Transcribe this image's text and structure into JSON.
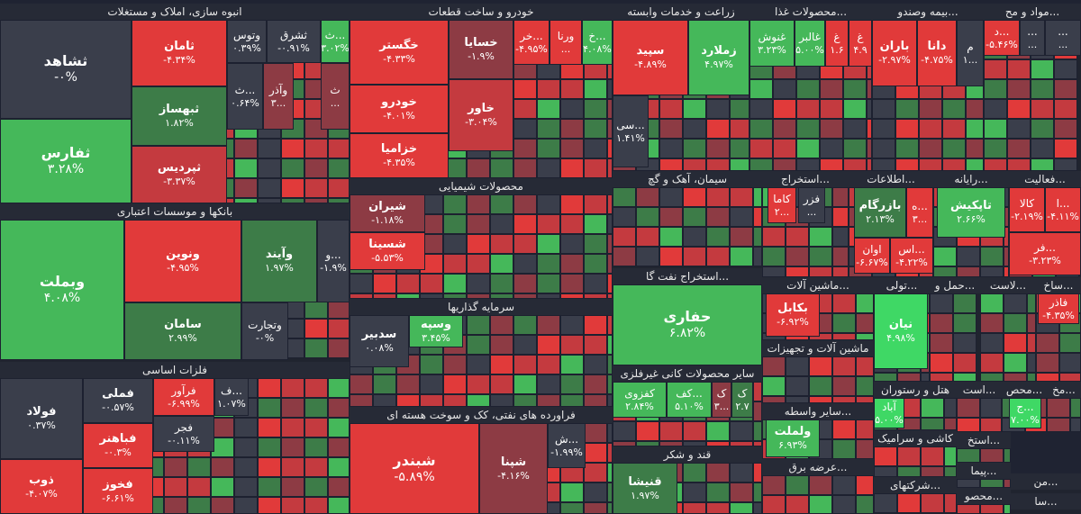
{
  "colors": {
    "strong_red": "#e13a3a",
    "red": "#c43a3f",
    "dark_red": "#8d3b44",
    "neutral": "#3a3e4b",
    "dark_green": "#3d7c48",
    "green": "#45b85a",
    "bright_green": "#3fd865"
  },
  "chart_data": {
    "type": "treemap",
    "title": "",
    "sectors": [
      {
        "name": "انبوه سازی، املاک و مستغلات",
        "stocks": [
          {
            "name": "ثشاهد",
            "change": "-۰%"
          },
          {
            "name": "ثفارس",
            "change": "۳.۲۸%"
          },
          {
            "name": "ثامان",
            "change": "-۴.۳۴%"
          },
          {
            "name": "ثبهساز",
            "change": "۱.۸۲%"
          },
          {
            "name": "ثپردیس",
            "change": "-۳.۳۷%"
          },
          {
            "name": "وتوس",
            "change": "۰.۳۹%"
          },
          {
            "name": "ثشرق",
            "change": "-۰.۹۱%"
          },
          {
            "name": "ث...",
            "change": "۳.۰۲%"
          },
          {
            "name": "ث...",
            "change": "۰.۶۴%"
          },
          {
            "name": "وآذر",
            "change": "۳..."
          },
          {
            "name": "ث",
            "change": "..."
          }
        ]
      },
      {
        "name": "خودرو و ساخت قطعات",
        "stocks": [
          {
            "name": "خگستر",
            "change": "-۴.۳۳%"
          },
          {
            "name": "خودرو",
            "change": "-۴.۰۱%"
          },
          {
            "name": "خزامیا",
            "change": "-۴.۳۵%"
          },
          {
            "name": "خسایا",
            "change": "-۱.۹%"
          },
          {
            "name": "خاور",
            "change": "-۳.۰۴%"
          },
          {
            "name": "خر...",
            "change": "-۴.۹۵%"
          },
          {
            "name": "ورنا",
            "change": "..."
          },
          {
            "name": "خ...",
            "change": "۴.۰۸%"
          }
        ]
      },
      {
        "name": "زراعت و خدمات وابسته",
        "stocks": [
          {
            "name": "سپید",
            "change": "-۴.۸۹%"
          },
          {
            "name": "زملارد",
            "change": "۴.۹۷%"
          },
          {
            "name": "سی...",
            "change": "۱.۴۱%"
          }
        ]
      },
      {
        "name": "محصولات غذا...",
        "stocks": [
          {
            "name": "غنوش",
            "change": "۳.۲۳%"
          },
          {
            "name": "غالبر",
            "change": "۵.۰۰%"
          },
          {
            "name": "غ",
            "change": "۱.۶"
          },
          {
            "name": "غ",
            "change": "۴.۹"
          }
        ]
      },
      {
        "name": "بیمه وصندو...",
        "stocks": [
          {
            "name": "باران",
            "change": "-۲.۹۷%"
          },
          {
            "name": "دانا",
            "change": "-۴.۷۵%"
          },
          {
            "name": "م",
            "change": "۱..."
          }
        ]
      },
      {
        "name": "مواد و مح...",
        "stocks": [
          {
            "name": "د...",
            "change": "-۵.۴۶%"
          },
          {
            "name": "...",
            "change": "..."
          },
          {
            "name": "...",
            "change": "..."
          }
        ]
      },
      {
        "name": "بانکها و موسسات اعتباری",
        "stocks": [
          {
            "name": "وبملت",
            "change": "۴.۰۸%"
          },
          {
            "name": "ونوین",
            "change": "-۴.۹۵%"
          },
          {
            "name": "سامان",
            "change": "۲.۹۹%"
          },
          {
            "name": "وآیند",
            "change": "۱.۹۷%"
          },
          {
            "name": "و...",
            "change": "-۱.۹%"
          },
          {
            "name": "وتجارت",
            "change": "-۰%"
          }
        ]
      },
      {
        "name": "محصولات شیمیایی",
        "stocks": [
          {
            "name": "شیران",
            "change": "-۱.۱۸%"
          },
          {
            "name": "شسینا",
            "change": "-۵.۵۳%"
          }
        ]
      },
      {
        "name": "سرمایه گذاریها",
        "stocks": [
          {
            "name": "سدبیر",
            "change": "۰.۰۸%"
          },
          {
            "name": "وسپه",
            "change": "۳.۴۵%"
          }
        ]
      },
      {
        "name": "فلزات اساسی",
        "stocks": [
          {
            "name": "فولاد",
            "change": "۰.۳۷%"
          },
          {
            "name": "ذوب",
            "change": "-۴.۰۷%"
          },
          {
            "name": "فملی",
            "change": "-۰.۵۷%"
          },
          {
            "name": "فباهنر",
            "change": "-۰.۳%"
          },
          {
            "name": "فخوز",
            "change": "-۶.۶۱%"
          },
          {
            "name": "فرآور",
            "change": "-۶.۹۹%"
          },
          {
            "name": "فجر",
            "change": "-۰.۱۱%"
          },
          {
            "name": "ف...",
            "change": "۱.۰۷%"
          }
        ]
      },
      {
        "name": "فراورده های نفتی، کک و سوخت هسته ای",
        "stocks": [
          {
            "name": "شبندر",
            "change": "-۵.۸۹%"
          },
          {
            "name": "شپنا",
            "change": "-۴.۱۶%"
          },
          {
            "name": "ش...",
            "change": "-۱.۹۹%"
          }
        ]
      },
      {
        "name": "سیمان، آهک و گچ",
        "stocks": []
      },
      {
        "name": "استخراج نفت گا...",
        "stocks": [
          {
            "name": "حفاری",
            "change": "۶.۸۲%"
          }
        ]
      },
      {
        "name": "سایر محصولات کانی غیرفلزی",
        "stocks": [
          {
            "name": "کفزوی",
            "change": "۲.۸۴%"
          },
          {
            "name": "کف...",
            "change": "۵.۱۰%"
          },
          {
            "name": "ک",
            "change": "۳..."
          },
          {
            "name": "ک",
            "change": "۲.۷"
          }
        ]
      },
      {
        "name": "قند و شکر",
        "stocks": [
          {
            "name": "قنیشا",
            "change": "۱.۹۷%"
          }
        ]
      },
      {
        "name": "استخراج...",
        "stocks": [
          {
            "name": "کاما",
            "change": "۲..."
          },
          {
            "name": "فزر",
            "change": "..."
          }
        ]
      },
      {
        "name": "اطلاعات...",
        "stocks": [
          {
            "name": "بازرگام",
            "change": "۲.۱۳%"
          },
          {
            "name": "ه...",
            "change": "۳..."
          },
          {
            "name": "اوان",
            "change": "-۶.۶۷%"
          },
          {
            "name": "اس...",
            "change": "-۴.۲۲%"
          }
        ]
      },
      {
        "name": "رایانه...",
        "stocks": [
          {
            "name": "تاپکیش",
            "change": "۲.۶۶%"
          }
        ]
      },
      {
        "name": "فعالیت...",
        "stocks": [
          {
            "name": "کالا",
            "change": "-۲.۱۹%"
          },
          {
            "name": "ا...",
            "change": "-۴.۱۱%"
          },
          {
            "name": "فر...",
            "change": "-۳.۲۳%"
          }
        ]
      },
      {
        "name": "ماشین آلات...",
        "stocks": [
          {
            "name": "بکابل",
            "change": "-۶.۹۲%"
          }
        ]
      },
      {
        "name": "ماشین آلات و تجهیزات",
        "stocks": []
      },
      {
        "name": "سایر واسطه...",
        "stocks": [
          {
            "name": "ولملت",
            "change": "۶.۹۳%"
          }
        ]
      },
      {
        "name": "عرضه برق...",
        "stocks": []
      },
      {
        "name": "تولی...",
        "stocks": [
          {
            "name": "نیان",
            "change": "۴.۹۸%"
          }
        ]
      },
      {
        "name": "حمل و...",
        "stocks": []
      },
      {
        "name": "لاست...",
        "stocks": []
      },
      {
        "name": "ساخ...",
        "stocks": [
          {
            "name": "فاذر",
            "change": "-۴.۳۵%"
          }
        ]
      },
      {
        "name": "هتل و رستوران",
        "stocks": [
          {
            "name": "آباد",
            "change": "۵.۰۰%"
          }
        ]
      },
      {
        "name": "کاشی و سرامیک",
        "stocks": [
          {
            "name": "ج...",
            "change": "۷.۰۰%"
          }
        ]
      },
      {
        "name": "شرکتهای...",
        "stocks": []
      },
      {
        "name": "است...",
        "stocks": []
      },
      {
        "name": "محص...",
        "stocks": []
      },
      {
        "name": "مخ...",
        "stocks": []
      },
      {
        "name": "استخ...",
        "stocks": []
      },
      {
        "name": "پیما...",
        "stocks": []
      },
      {
        "name": "من...",
        "stocks": []
      },
      {
        "name": "سا...",
        "stocks": []
      },
      {
        "name": "محصو...",
        "stocks": []
      }
    ]
  }
}
